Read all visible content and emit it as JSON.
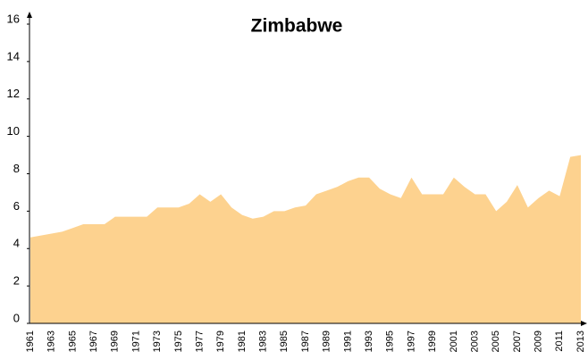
{
  "chart_data": {
    "type": "area",
    "title": "Zimbabwe",
    "categories": [
      "1961",
      null,
      "1963",
      null,
      "1965",
      null,
      "1967",
      null,
      "1969",
      null,
      "1971",
      null,
      "1973",
      null,
      "1975",
      null,
      "1977",
      null,
      "1979",
      null,
      "1981",
      null,
      "1983",
      null,
      "1985",
      null,
      "1987",
      null,
      "1989",
      null,
      "1991",
      null,
      "1993",
      null,
      "1995",
      null,
      "1997",
      null,
      "1999",
      null,
      "2001",
      null,
      "2003",
      null,
      "2005",
      null,
      "2007",
      null,
      "2009",
      null,
      "2011",
      null,
      "2013"
    ],
    "values": [
      4.6,
      4.7,
      4.8,
      4.9,
      5.1,
      5.3,
      5.3,
      5.3,
      5.7,
      5.7,
      5.7,
      5.7,
      6.2,
      6.2,
      6.2,
      6.4,
      6.9,
      6.5,
      6.9,
      6.2,
      5.8,
      5.6,
      5.7,
      6.0,
      6.0,
      6.2,
      6.3,
      6.9,
      7.1,
      7.3,
      7.6,
      7.8,
      7.8,
      7.2,
      6.9,
      6.7,
      7.8,
      6.9,
      6.9,
      6.9,
      7.8,
      7.3,
      6.9,
      6.9,
      6.0,
      6.5,
      7.4,
      6.2,
      6.7,
      7.1,
      6.8,
      8.9,
      9.0
    ],
    "color": "#fdd28f",
    "ylim": [
      0,
      16
    ],
    "yticks": [
      0,
      2,
      4,
      6,
      8,
      10,
      12,
      14,
      16
    ],
    "grid": false
  }
}
